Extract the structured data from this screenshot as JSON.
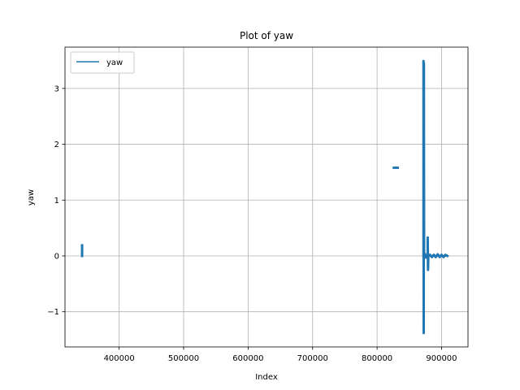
{
  "chart_data": {
    "type": "line",
    "title": "Plot of yaw",
    "xlabel": "Index",
    "ylabel": "yaw",
    "xlim": [
      316000,
      941000
    ],
    "ylim": [
      -1.63,
      3.74
    ],
    "xticks": [
      400000,
      500000,
      600000,
      700000,
      800000,
      900000
    ],
    "xtick_labels": [
      "400000",
      "500000",
      "600000",
      "700000",
      "800000",
      "900000"
    ],
    "yticks": [
      -1,
      0,
      1,
      2,
      3
    ],
    "ytick_labels": [
      "−1",
      "0",
      "1",
      "2",
      "3"
    ],
    "grid": true,
    "legend_position": "upper-left",
    "series": [
      {
        "name": "yaw",
        "color": "#1f77b4",
        "segments": [
          [
            [
              342500,
              0.0
            ],
            [
              342500,
              0.19
            ]
          ],
          [
            [
              826000,
              1.58
            ],
            [
              832000,
              1.58
            ]
          ],
          [
            [
              872000,
              0.0
            ],
            [
              872000,
              3.49
            ],
            [
              872300,
              -1.38
            ],
            [
              872600,
              3.45
            ],
            [
              872900,
              0.0
            ]
          ],
          [
            [
              872900,
              0.0
            ],
            [
              874000,
              0.04
            ],
            [
              876000,
              -0.03
            ],
            [
              878000,
              0.02
            ]
          ],
          [
            [
              878500,
              0.0
            ],
            [
              878500,
              0.33
            ],
            [
              879000,
              -0.25
            ],
            [
              879500,
              0.0
            ]
          ],
          [
            [
              879500,
              0.0
            ],
            [
              882000,
              0.02
            ],
            [
              885000,
              -0.02
            ],
            [
              888000,
              0.02
            ],
            [
              891000,
              -0.02
            ],
            [
              894000,
              0.03
            ],
            [
              897000,
              -0.02
            ],
            [
              900000,
              0.02
            ],
            [
              903000,
              -0.02
            ],
            [
              906000,
              0.02
            ],
            [
              909000,
              0.0
            ]
          ]
        ]
      }
    ]
  }
}
